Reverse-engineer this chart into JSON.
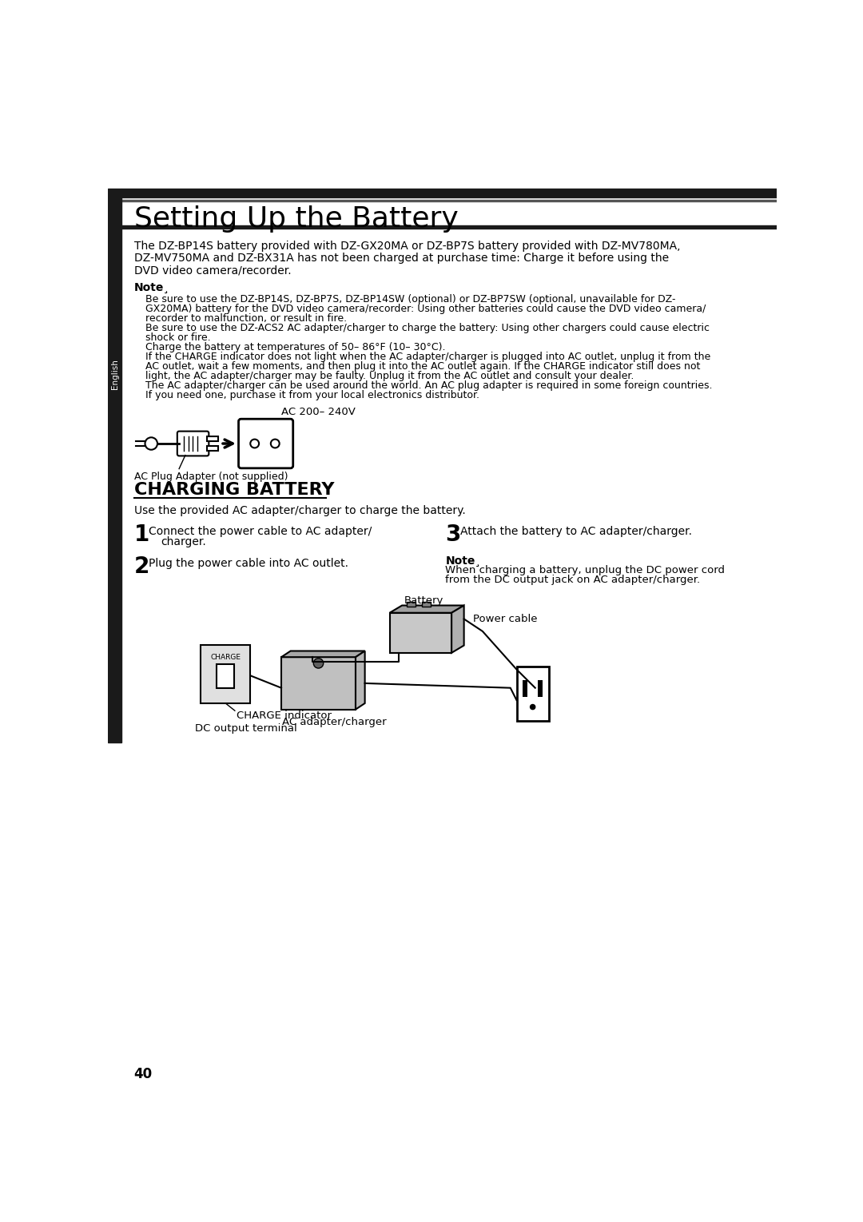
{
  "title": "Setting Up the Battery",
  "section2_title": "CHARGING BATTERY",
  "page_number": "40",
  "sidebar_text": "English",
  "bg_color": "#ffffff",
  "sidebar_color": "#1a1a1a",
  "header_bar_color": "#1a1a1a",
  "main_text_color": "#000000",
  "body_line1": "The DZ-BP14S battery provided with DZ-GX20MA or DZ-BP7S battery provided with DZ-MV780MA,",
  "body_line2": "DZ-MV750MA and DZ-BX31A has not been charged at purchase time: Charge it before using the",
  "body_line3": "DVD video camera/recorder.",
  "note_label": "Note¸",
  "note_lines": [
    "Be sure to use the DZ-BP14S, DZ-BP7S, DZ-BP14SW (optional) or DZ-BP7SW (optional, unavailable for DZ-",
    "GX20MA) battery for the DVD video camera/recorder: Using other batteries could cause the DVD video camera/",
    "recorder to malfunction, or result in fire.",
    "Be sure to use the DZ-ACS2 AC adapter/charger to charge the battery: Using other chargers could cause electric",
    "shock or fire.",
    "Charge the battery at temperatures of 50– 86°F (10– 30°C).",
    "If the CHARGE indicator does not light when the AC adapter/charger is plugged into AC outlet, unplug it from the",
    "AC outlet, wait a few moments, and then plug it into the AC outlet again. If the CHARGE indicator still does not",
    "light, the AC adapter/charger may be faulty. Unplug it from the AC outlet and consult your dealer.",
    "The AC adapter/charger can be used around the world. An AC plug adapter is required in some foreign countries.",
    "If you need one, purchase it from your local electronics distributor."
  ],
  "ac_label": "AC 200– 240V",
  "plug_adapter_label": "AC Plug Adapter (not supplied)",
  "charging_intro": "Use the provided AC adapter/charger to charge the battery.",
  "step1_num": "1",
  "step1_line1": "Connect the power cable to AC adapter/",
  "step1_line2": "charger.",
  "step2_num": "2",
  "step2_text": "Plug the power cable into AC outlet.",
  "step3_num": "3",
  "step3_text": "Attach the battery to AC adapter/charger.",
  "step3_note_label": "Note¸",
  "step3_note_line1": "When charging a battery, unplug the DC power cord",
  "step3_note_line2": "from the DC output jack on AC adapter/charger.",
  "lbl_battery": "Battery",
  "lbl_power_cable": "Power cable",
  "lbl_charge_indicator": "CHARGE indicator",
  "lbl_ac_adapter": "AC adapter/charger",
  "lbl_dc_output": "DC output terminal",
  "lbl_charge": "CHARGE"
}
